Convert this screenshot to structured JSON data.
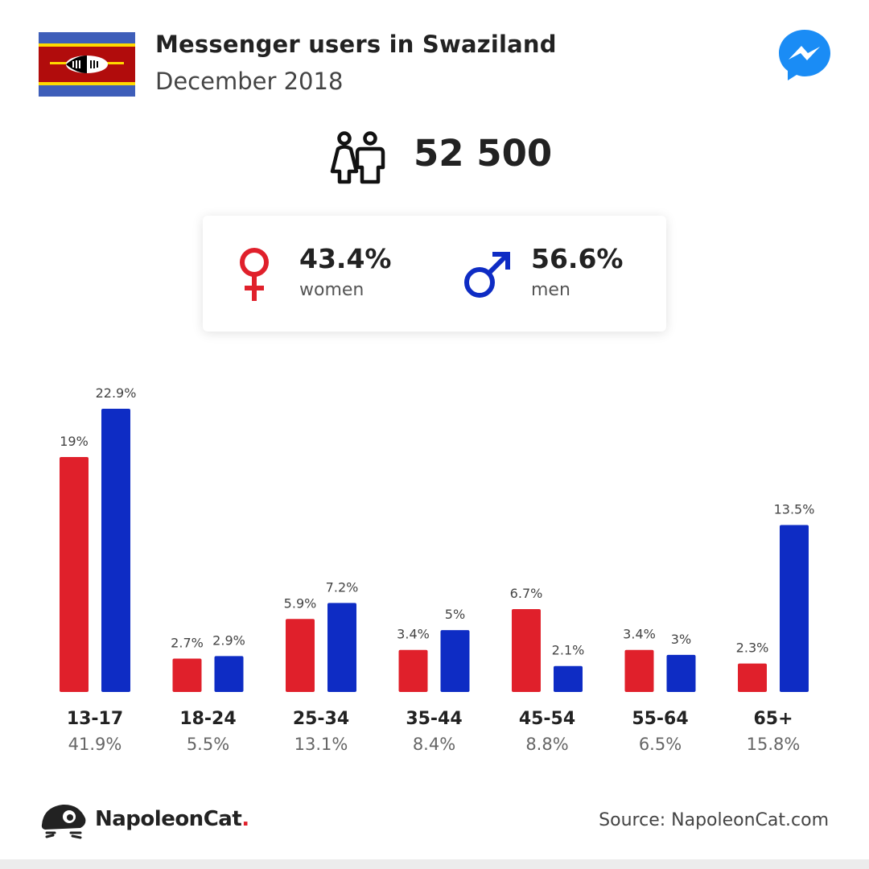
{
  "header": {
    "title": "Messenger users in Swaziland",
    "subtitle": "December 2018"
  },
  "summary": {
    "total_users": "52 500",
    "women_pct": "43.4%",
    "women_label": "women",
    "men_pct": "56.6%",
    "men_label": "men"
  },
  "icons": {
    "flag": "swaziland-flag-icon",
    "app": "messenger-icon",
    "users": "people-icon",
    "female": "female-symbol-icon",
    "male": "male-symbol-icon",
    "brand": "napoleoncat-logo-icon"
  },
  "colors": {
    "women": "#e0202b",
    "men": "#0e2cc4",
    "messenger": "#1a8cf5"
  },
  "chart_data": {
    "type": "bar",
    "categories": [
      "13-17",
      "18-24",
      "25-34",
      "35-44",
      "45-54",
      "55-64",
      "65+"
    ],
    "category_totals": [
      "41.9%",
      "5.5%",
      "13.1%",
      "8.4%",
      "8.8%",
      "6.5%",
      "15.8%"
    ],
    "series": [
      {
        "name": "women",
        "values": [
          19,
          2.7,
          5.9,
          3.4,
          6.7,
          3.4,
          2.3
        ],
        "labels": [
          "19%",
          "2.7%",
          "5.9%",
          "3.4%",
          "6.7%",
          "3.4%",
          "2.3%"
        ]
      },
      {
        "name": "men",
        "values": [
          22.9,
          2.9,
          7.2,
          5,
          2.1,
          3,
          13.5
        ],
        "labels": [
          "22.9%",
          "2.9%",
          "7.2%",
          "5%",
          "2.1%",
          "3%",
          "13.5%"
        ]
      }
    ]
  },
  "footer": {
    "brand_name": "NapoleonCat",
    "brand_dot": ".",
    "source": "Source: NapoleonCat.com"
  }
}
